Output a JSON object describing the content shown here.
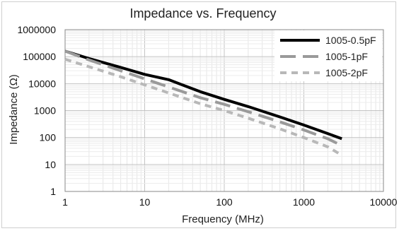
{
  "chart_data": {
    "type": "line",
    "title": "Impedance vs. Frequency",
    "xlabel": "Frequency (MHz)",
    "ylabel": "Impedance (Ω)",
    "x_scale": "log",
    "y_scale": "log",
    "xlim": [
      1,
      10000
    ],
    "ylim": [
      1,
      1000000
    ],
    "x_ticks": [
      "1",
      "10",
      "100",
      "1000",
      "10000"
    ],
    "y_ticks": [
      "1",
      "10",
      "100",
      "1000",
      "10000",
      "100000",
      "1000000"
    ],
    "grid": true,
    "legend": "top-right",
    "series": [
      {
        "name": "1005-0.5pF",
        "color": "#000000",
        "dash": "solid",
        "x": [
          1,
          2,
          5,
          10,
          20,
          50,
          100,
          200,
          500,
          1000,
          2000,
          3000
        ],
        "y": [
          160000,
          85000,
          40000,
          22000,
          14000,
          5000,
          2600,
          1400,
          580,
          290,
          140,
          90
        ]
      },
      {
        "name": "1005-1pF",
        "color": "#9a9a9a",
        "dash": "long-dash",
        "x": [
          1,
          2,
          5,
          10,
          20,
          50,
          100,
          200,
          500,
          1000,
          2000,
          3000
        ],
        "y": [
          160000,
          75000,
          30000,
          15000,
          7500,
          3000,
          1700,
          900,
          380,
          190,
          90,
          50
        ]
      },
      {
        "name": "1005-2pF",
        "color": "#b8b8b8",
        "dash": "short-dash",
        "x": [
          1,
          2,
          5,
          10,
          20,
          50,
          100,
          200,
          500,
          1000,
          2000,
          3000
        ],
        "y": [
          80000,
          42000,
          18000,
          9000,
          4500,
          1800,
          1000,
          520,
          210,
          100,
          45,
          22
        ]
      }
    ]
  }
}
